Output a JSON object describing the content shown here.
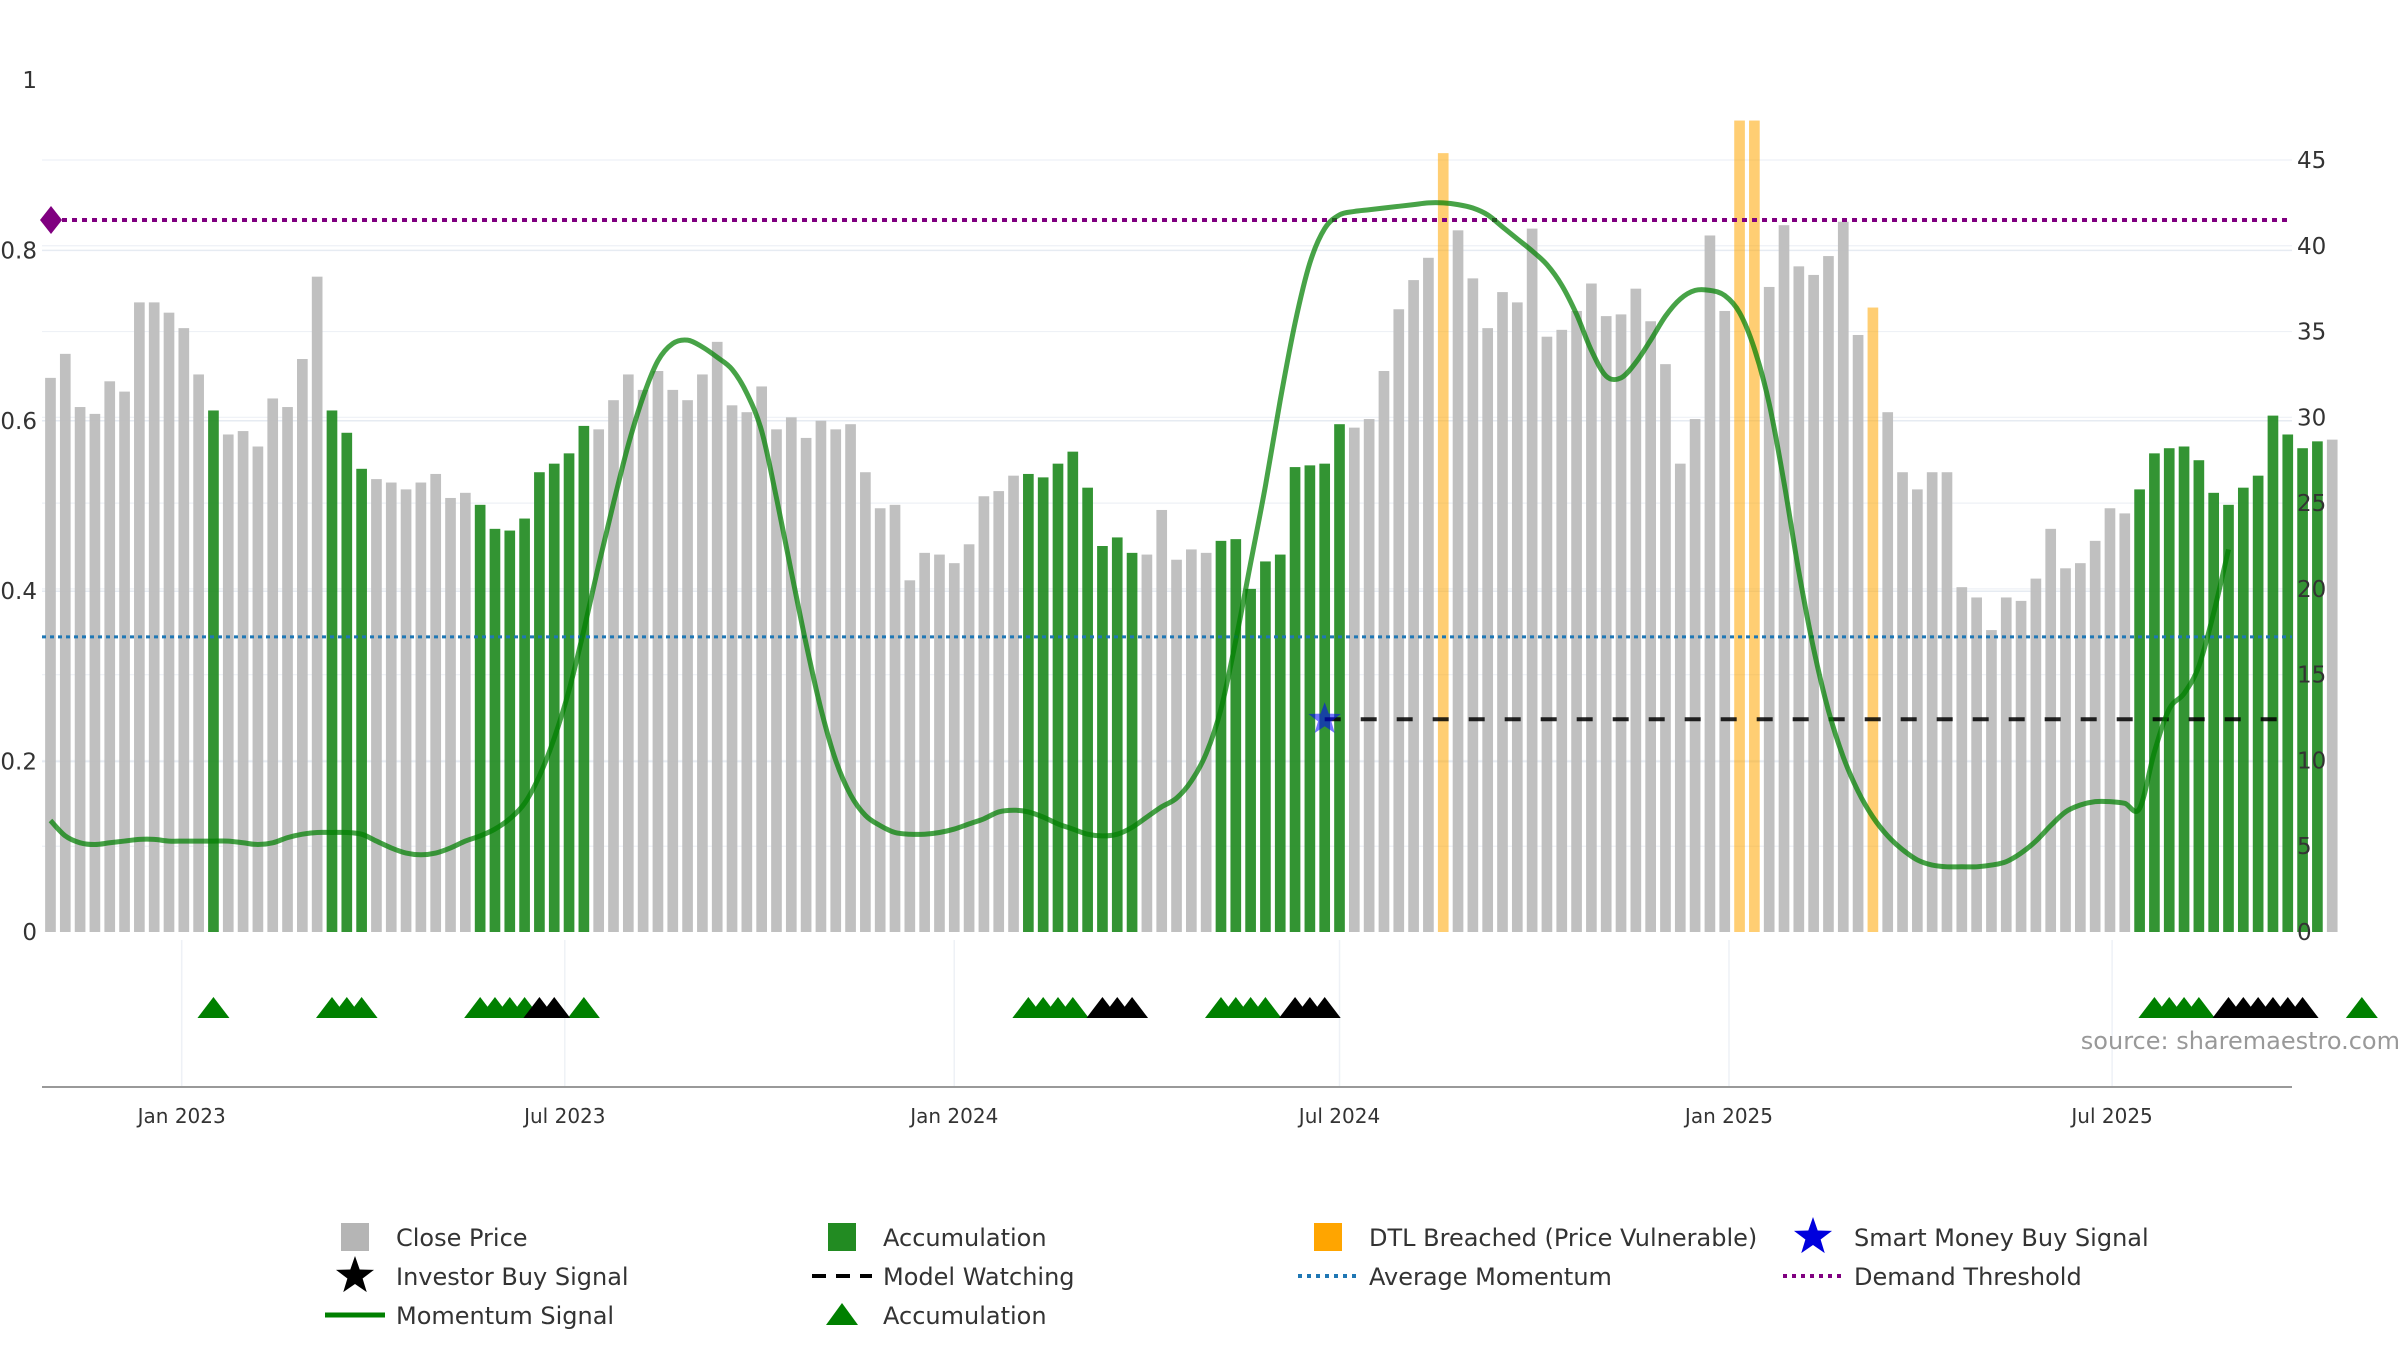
{
  "chart_data": {
    "type": "bar",
    "source": "source: sharemaestro.com",
    "left_axis": {
      "range": [
        0,
        1
      ],
      "ticks": [
        "0",
        "0.2",
        "0.4",
        "0.6",
        "0.8",
        "1"
      ]
    },
    "right_axis": {
      "range": [
        0,
        49
      ],
      "ticks": [
        "0",
        "5",
        "10",
        "15",
        "20",
        "25",
        "30",
        "35",
        "40",
        "45"
      ]
    },
    "x_range": [
      "2022-10-27",
      "2025-09-24"
    ],
    "x_ticks": [
      {
        "date": "2023-01-01",
        "label": "Jan 2023"
      },
      {
        "date": "2023-07-01",
        "label": "Jul 2023"
      },
      {
        "date": "2024-01-01",
        "label": "Jan 2024"
      },
      {
        "date": "2024-07-01",
        "label": "Jul 2024"
      },
      {
        "date": "2025-01-01",
        "label": "Jan 2025"
      },
      {
        "date": "2025-07-01",
        "label": "Jul 2025"
      }
    ],
    "week_start": "2022-10-31",
    "close_price": [
      32.3,
      33.7,
      30.6,
      30.2,
      32.1,
      31.5,
      36.7,
      36.7,
      36.1,
      35.2,
      32.5,
      30.4,
      29.0,
      29.2,
      28.3,
      31.1,
      30.6,
      33.4,
      38.2,
      30.4,
      29.1,
      27.0,
      26.4,
      26.2,
      25.8,
      26.2,
      26.7,
      25.3,
      25.6,
      24.9,
      23.5,
      23.4,
      24.1,
      26.8,
      27.3,
      27.9,
      29.5,
      29.3,
      31.0,
      32.5,
      31.6,
      32.7,
      31.6,
      31.0,
      32.5,
      34.4,
      30.7,
      30.3,
      31.8,
      29.3,
      30.0,
      28.8,
      29.8,
      29.3,
      29.6,
      26.8,
      24.7,
      24.9,
      20.5,
      22.1,
      22.0,
      21.5,
      22.6,
      25.4,
      25.7,
      26.6,
      26.7,
      26.5,
      27.3,
      28.0,
      25.9,
      22.5,
      23.0,
      22.1,
      22.0,
      24.6,
      21.7,
      22.3,
      22.1,
      22.8,
      22.9,
      20.0,
      21.6,
      22.0,
      27.1,
      27.2,
      27.3,
      29.6,
      29.4,
      29.9,
      32.7,
      36.3,
      38.0,
      39.3,
      45.4,
      40.9,
      38.1,
      35.2,
      37.3,
      36.7,
      41.0,
      34.7,
      35.1,
      36.2,
      37.8,
      35.9,
      36.0,
      37.5,
      35.6,
      33.1,
      27.3,
      29.9,
      40.6,
      36.2,
      47.3,
      47.3,
      37.6,
      41.2,
      38.8,
      38.3,
      39.4,
      41.4,
      34.8,
      36.4,
      30.3,
      26.8,
      25.8,
      26.8,
      26.8,
      20.1,
      19.5,
      17.6,
      19.5,
      19.3,
      20.6,
      23.5,
      21.2,
      21.5,
      22.8,
      24.7,
      24.4,
      25.8,
      27.9,
      28.2,
      28.3,
      27.5,
      25.6,
      24.9,
      25.9,
      26.6,
      30.1,
      29.0,
      28.2,
      28.6,
      28.7
    ],
    "accumulation_weeks": [
      11,
      19,
      20,
      21,
      29,
      30,
      31,
      32,
      33,
      34,
      35,
      36,
      66,
      67,
      68,
      69,
      70,
      71,
      72,
      73,
      79,
      80,
      81,
      82,
      83,
      84,
      85,
      86,
      87,
      141,
      142,
      143,
      144,
      145,
      146,
      147,
      148,
      149,
      150,
      151,
      152,
      153,
      156
    ],
    "dtl_breached_weeks": [
      94,
      114,
      115,
      123
    ],
    "momentum_signal": [
      6.5,
      5.6,
      5.2,
      5.1,
      5.2,
      5.3,
      5.4,
      5.4,
      5.3,
      5.3,
      5.3,
      5.3,
      5.3,
      5.2,
      5.1,
      5.2,
      5.5,
      5.7,
      5.8,
      5.8,
      5.8,
      5.7,
      5.3,
      4.9,
      4.6,
      4.5,
      4.6,
      4.9,
      5.3,
      5.6,
      6.0,
      6.6,
      7.5,
      9.1,
      11.3,
      14.1,
      17.6,
      21.4,
      25.0,
      28.4,
      31.2,
      33.3,
      34.3,
      34.5,
      34.1,
      33.5,
      32.8,
      31.4,
      29.2,
      25.3,
      21.0,
      16.8,
      13.0,
      10.0,
      8.0,
      6.8,
      6.2,
      5.8,
      5.7,
      5.7,
      5.8,
      6.0,
      6.3,
      6.6,
      7.0,
      7.1,
      7.0,
      6.7,
      6.3,
      6.0,
      5.7,
      5.6,
      5.7,
      6.1,
      6.7,
      7.3,
      7.8,
      8.8,
      10.4,
      13.0,
      17.0,
      21.5,
      26.0,
      31.0,
      35.5,
      39.0,
      41.0,
      41.8,
      42.0,
      42.1,
      42.2,
      42.3,
      42.4,
      42.5,
      42.5,
      42.4,
      42.2,
      41.8,
      41.1,
      40.4,
      39.7,
      38.9,
      37.7,
      36.0,
      33.9,
      32.4,
      32.3,
      33.2,
      34.5,
      35.9,
      36.9,
      37.4,
      37.4,
      37.1,
      36.1,
      34.0,
      30.8,
      26.2,
      21.0,
      16.5,
      12.9,
      10.2,
      8.2,
      6.7,
      5.6,
      4.8,
      4.2,
      3.9,
      3.8,
      3.8,
      3.8,
      3.9,
      4.1,
      4.6,
      5.3,
      6.2,
      7.0,
      7.4,
      7.6,
      7.6,
      7.5,
      7.2,
      10.5,
      13.0,
      13.9,
      15.5,
      18.6,
      22.3
    ],
    "average_momentum": 17.2,
    "demand_threshold": 41.5,
    "model_watching": {
      "level": 12.4,
      "from_week": 86
    },
    "smart_money_signal": {
      "week": 86,
      "value": 12.4
    },
    "accumulation_markers": [
      11,
      19,
      20,
      21,
      29,
      30,
      31,
      32,
      36,
      66,
      67,
      68,
      69,
      79,
      80,
      81,
      82,
      142,
      143,
      144,
      145,
      156
    ],
    "investor_buy_markers": [
      33,
      34,
      71,
      72,
      73,
      84,
      85,
      86,
      147,
      148,
      149,
      150,
      151,
      152
    ],
    "colors": {
      "close_price": "#bdbdbd",
      "accumulation": "#228b22",
      "dtl_breached": "#ffa500",
      "momentum": "#008000",
      "average_momentum": "#1f77b4",
      "demand_threshold": "#800080",
      "model_watching": "#000000",
      "smart_money": "#0000ff",
      "investor_buy": "#000000"
    },
    "legend": [
      {
        "label": "Close Price",
        "symbol": "square",
        "color": "#b5b5b5"
      },
      {
        "label": "Accumulation",
        "symbol": "square",
        "color": "#228b22"
      },
      {
        "label": "DTL Breached (Price Vulnerable)",
        "symbol": "square",
        "color": "#ffa500"
      },
      {
        "label": "Smart Money Buy Signal",
        "symbol": "star",
        "color": "#0000dd"
      },
      {
        "label": "Investor Buy Signal",
        "symbol": "star",
        "color": "#000000"
      },
      {
        "label": "Model Watching",
        "symbol": "dash",
        "color": "#000000"
      },
      {
        "label": "Average Momentum",
        "symbol": "dot",
        "color": "#1f77b4"
      },
      {
        "label": "Demand Threshold",
        "symbol": "dot",
        "color": "#800080"
      },
      {
        "label": "Momentum Signal",
        "symbol": "line",
        "color": "#008000"
      },
      {
        "label": "Accumulation",
        "symbol": "triangle",
        "color": "#008000"
      }
    ]
  }
}
